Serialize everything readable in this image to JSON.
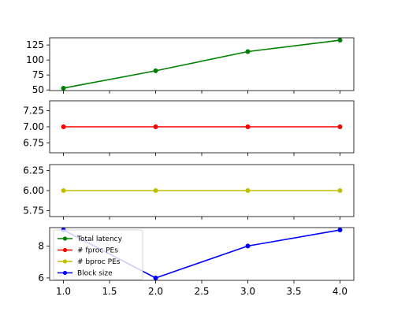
{
  "chart_data": {
    "type": "line",
    "x": [
      1.0,
      2.0,
      3.0,
      4.0
    ],
    "x_ticks": [
      "1.0",
      "1.5",
      "2.0",
      "2.5",
      "3.0",
      "3.5",
      "4.0"
    ],
    "x_tick_values": [
      1.0,
      1.5,
      2.0,
      2.5,
      3.0,
      3.5,
      4.0
    ],
    "xlim": [
      0.85,
      4.15
    ],
    "grid": false,
    "legend_placement": "lower-left of bottom panel",
    "legend": [
      {
        "name": "Total latency",
        "color": "#008000"
      },
      {
        "name": "# fproc PEs",
        "color": "#ff0000"
      },
      {
        "name": "# bproc PEs",
        "color": "#bfbf00"
      },
      {
        "name": "Block size",
        "color": "#0000ff"
      }
    ],
    "panels": [
      {
        "series": "Total latency",
        "color": "#008000",
        "values": [
          53,
          82,
          114,
          133
        ],
        "ylim": [
          49,
          137
        ],
        "y_ticks": [
          "50",
          "75",
          "100",
          "125"
        ],
        "y_tick_values": [
          50,
          75,
          100,
          125
        ]
      },
      {
        "series": "# fproc PEs",
        "color": "#ff0000",
        "values": [
          7,
          7,
          7,
          7
        ],
        "ylim": [
          6.6,
          7.4
        ],
        "y_ticks": [
          "6.75",
          "7.00",
          "7.25"
        ],
        "y_tick_values": [
          6.75,
          7.0,
          7.25
        ]
      },
      {
        "series": "# bproc PEs",
        "color": "#bfbf00",
        "values": [
          6,
          6,
          6,
          6
        ],
        "ylim": [
          5.675,
          6.325
        ],
        "y_ticks": [
          "5.75",
          "6.00",
          "6.25"
        ],
        "y_tick_values": [
          5.75,
          6.0,
          6.25
        ]
      },
      {
        "series": "Block size",
        "color": "#0000ff",
        "values": [
          9,
          6,
          8,
          9
        ],
        "ylim": [
          5.85,
          9.15
        ],
        "y_ticks": [
          "6",
          "8"
        ],
        "y_tick_values": [
          6,
          8
        ]
      }
    ]
  }
}
